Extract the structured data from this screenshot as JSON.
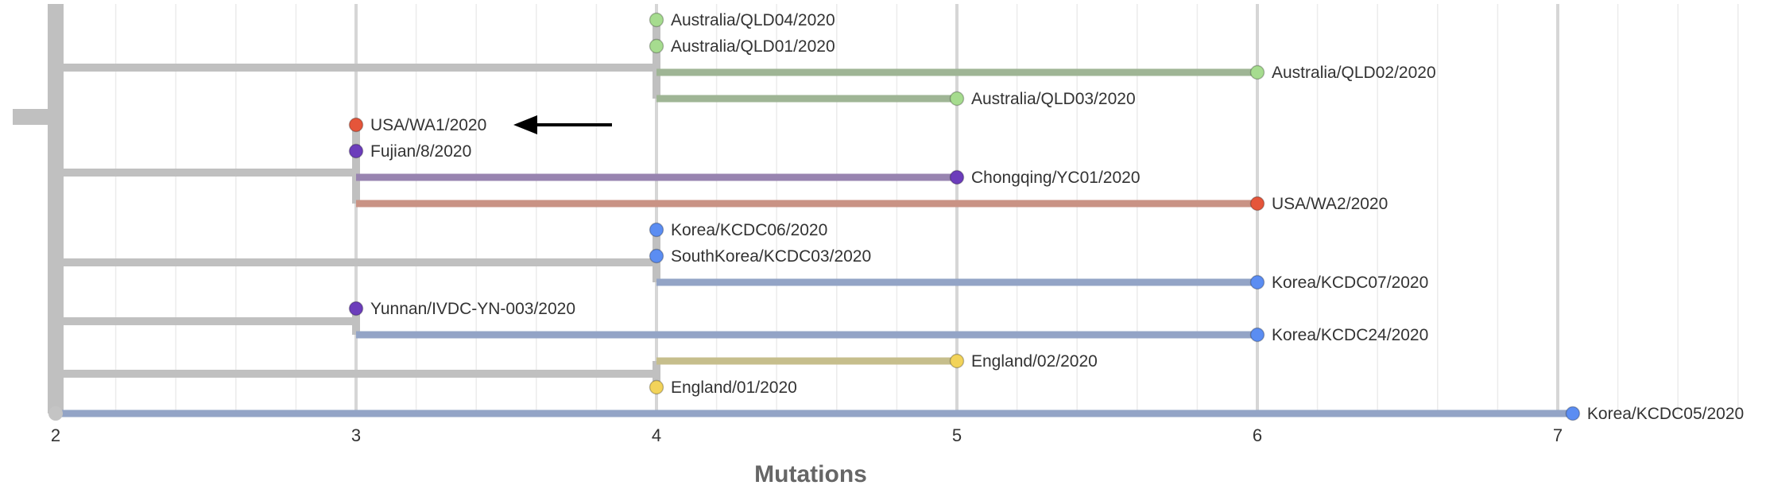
{
  "chart_data": {
    "type": "phylogenetic-tree",
    "xlabel": "Mutations",
    "xlim": [
      2,
      7.6
    ],
    "x_ticks": [
      2,
      3,
      4,
      5,
      6,
      7
    ],
    "grid": true,
    "tips": [
      {
        "name": "Australia/QLD04/2020",
        "mutations": 4,
        "color": "#a6dc8f",
        "parent": "c1"
      },
      {
        "name": "Australia/QLD01/2020",
        "mutations": 4,
        "color": "#a6dc8f",
        "parent": "c1"
      },
      {
        "name": "Australia/QLD02/2020",
        "mutations": 6,
        "color": "#a6dc8f",
        "parent": "c1"
      },
      {
        "name": "Australia/QLD03/2020",
        "mutations": 5,
        "color": "#a6dc8f",
        "parent": "c1"
      },
      {
        "name": "USA/WA1/2020",
        "mutations": 3,
        "color": "#e5553a",
        "parent": "c2",
        "arrow": true
      },
      {
        "name": "Fujian/8/2020",
        "mutations": 3,
        "color": "#6c3dbb",
        "parent": "c2"
      },
      {
        "name": "Chongqing/YC01/2020",
        "mutations": 5,
        "color": "#6c3dbb",
        "parent": "c2"
      },
      {
        "name": "USA/WA2/2020",
        "mutations": 6,
        "color": "#e5553a",
        "parent": "c2"
      },
      {
        "name": "Korea/KCDC06/2020",
        "mutations": 4,
        "color": "#5b8df2",
        "parent": "c3"
      },
      {
        "name": "SouthKorea/KCDC03/2020",
        "mutations": 4,
        "color": "#5b8df2",
        "parent": "c3"
      },
      {
        "name": "Korea/KCDC07/2020",
        "mutations": 6,
        "color": "#5b8df2",
        "parent": "c3"
      },
      {
        "name": "Yunnan/IVDC-YN-003/2020",
        "mutations": 3,
        "color": "#6c3dbb",
        "parent": "c4"
      },
      {
        "name": "Korea/KCDC24/2020",
        "mutations": 6,
        "color": "#5b8df2",
        "parent": "c4"
      },
      {
        "name": "England/02/2020",
        "mutations": 5,
        "color": "#f2d35a",
        "parent": "c5"
      },
      {
        "name": "England/01/2020",
        "mutations": 4,
        "color": "#f2d35a",
        "parent": "c5"
      },
      {
        "name": "Korea/KCDC05/2020",
        "mutations": 7.05,
        "color": "#5b8df2",
        "parent": "root"
      }
    ],
    "clades": [
      {
        "id": "c1",
        "mutations": 4
      },
      {
        "id": "c2",
        "mutations": 3
      },
      {
        "id": "c3",
        "mutations": 4
      },
      {
        "id": "c4",
        "mutations": 3
      },
      {
        "id": "c5",
        "mutations": 4
      }
    ],
    "root_mutations": 2,
    "branch_colors": {
      "#a6dc8f": "#9fb595",
      "#e5553a": "#c99385",
      "#6c3dbb": "#9884b0",
      "#5b8df2": "#93a4c6",
      "#f2d35a": "#c6be8c",
      "gray": "#c0c0c0"
    }
  }
}
